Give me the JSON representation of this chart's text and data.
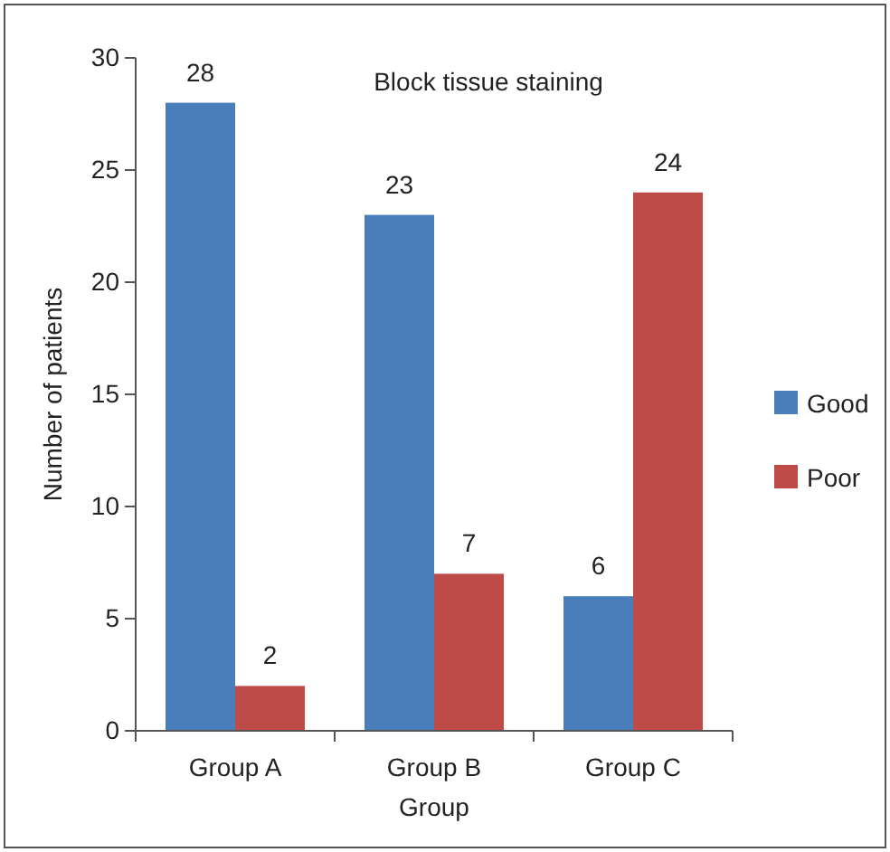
{
  "chart_data": {
    "type": "bar",
    "title": "Block tissue staining",
    "xlabel": "Group",
    "ylabel": "Number of patients",
    "categories": [
      "Group A",
      "Group B",
      "Group C"
    ],
    "series": [
      {
        "name": "Good",
        "color": "#4a7ebb",
        "values": [
          28,
          23,
          6
        ]
      },
      {
        "name": "Poor",
        "color": "#be4b48",
        "values": [
          2,
          7,
          24
        ]
      }
    ],
    "ylim": [
      0,
      30
    ],
    "yticks": [
      0,
      5,
      10,
      15,
      20,
      25,
      30
    ],
    "data_labels": true,
    "legend": "right",
    "grid": false
  }
}
